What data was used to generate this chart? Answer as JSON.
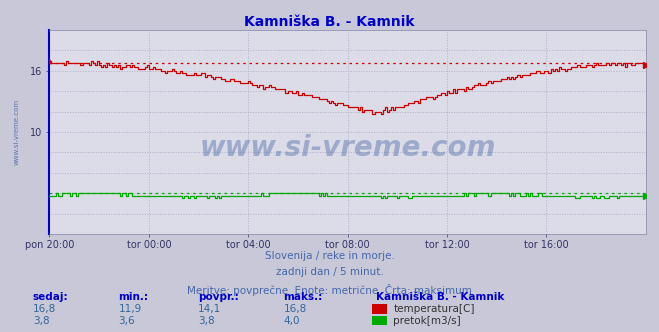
{
  "title": "Kamniška B. - Kamnik",
  "title_color": "#0000cc",
  "bg_color": "#c8c8d8",
  "plot_bg_color": "#dcdce8",
  "grid_color": "#b0b0c8",
  "left_border_color": "#0000cc",
  "x_tick_labels": [
    "pon 20:00",
    "tor 00:00",
    "tor 04:00",
    "tor 08:00",
    "tor 12:00",
    "tor 16:00"
  ],
  "x_tick_positions": [
    0,
    48,
    96,
    144,
    192,
    240
  ],
  "n_points": 289,
  "temp_min": 11.9,
  "temp_max": 16.8,
  "temp_avg": 14.1,
  "temp_current": 16.8,
  "flow_min": 3.6,
  "flow_max": 4.0,
  "flow_avg": 3.8,
  "flow_current": 3.8,
  "temp_color": "#cc0000",
  "flow_color": "#00aa00",
  "flow_dashed_color": "#00aa00",
  "temp_dashed_color": "#cc0000",
  "watermark_color": "#4060a0",
  "subtitle_color": "#4466aa",
  "label_color": "#0000cc",
  "value_color": "#336699",
  "y_min": 0,
  "y_max": 20,
  "y_ticks": [
    10,
    16
  ],
  "footer_line1": "Slovenija / reke in morje.",
  "footer_line2": "zadnji dan / 5 minut.",
  "footer_line3": "Meritve: povprečne  Enote: metrične  Črta: maksimum",
  "legend_title": "Kamniška B. - Kamnik",
  "legend_items": [
    "temperatura[C]",
    "pretok[m3/s]"
  ],
  "legend_colors": [
    "#cc0000",
    "#00aa00"
  ],
  "table_headers": [
    "sedaj:",
    "min.:",
    "povpr.:",
    "maks.:"
  ],
  "table_row1": [
    "16,8",
    "11,9",
    "14,1",
    "16,8"
  ],
  "table_row2": [
    "3,8",
    "3,6",
    "3,8",
    "4,0"
  ],
  "logo_colors": [
    "#ffee00",
    "#00aaee",
    "#002299"
  ],
  "right_border_color": "#8888aa"
}
